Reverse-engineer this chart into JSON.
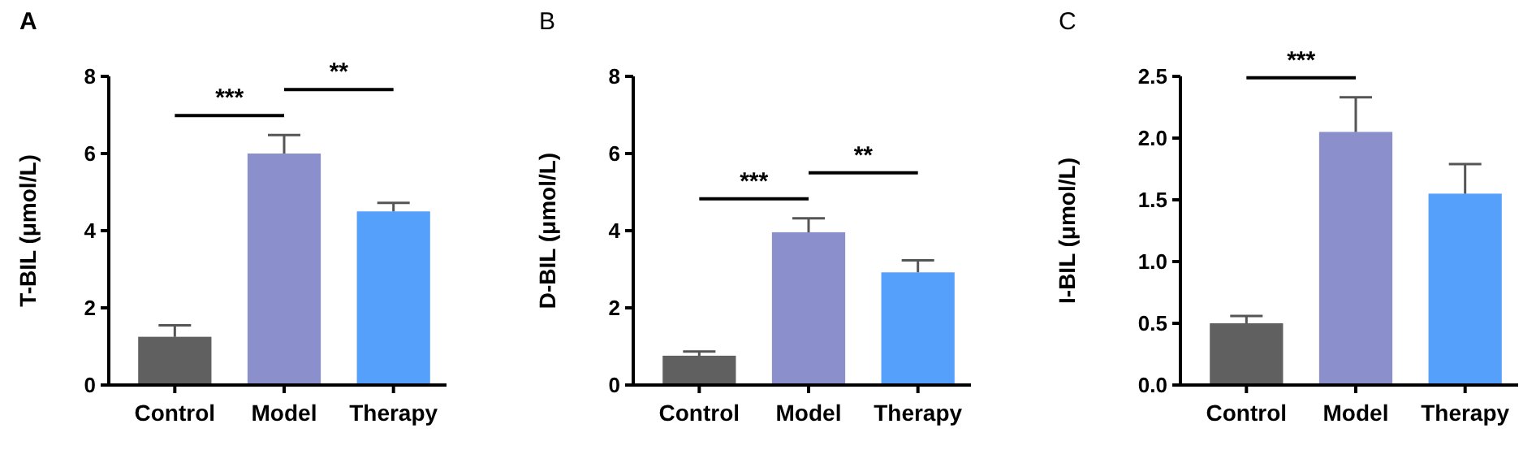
{
  "chart_data": [
    {
      "type": "bar",
      "title": "A",
      "ylabel": "T-BIL (μmol/L)",
      "categories": [
        "Control",
        "Model",
        "Therapy"
      ],
      "values": [
        1.25,
        6.0,
        4.5
      ],
      "errors": [
        [
          1.25,
          1.55
        ],
        [
          6.0,
          6.48
        ],
        [
          4.5,
          4.72
        ]
      ],
      "colors": [
        "#606060",
        "#8b90cc",
        "#55a0fb"
      ],
      "ylim": [
        0,
        8
      ],
      "yticks": [
        0,
        2,
        4,
        6,
        8
      ],
      "annotations": [
        "***",
        "**"
      ]
    },
    {
      "type": "bar",
      "title": "B",
      "ylabel": "D-BIL (μmol/L)",
      "categories": [
        "Control",
        "Model",
        "Therapy"
      ],
      "values": [
        0.76,
        3.96,
        2.92
      ],
      "errors": [
        [
          0.76,
          0.87
        ],
        [
          3.96,
          4.32
        ],
        [
          2.92,
          3.23
        ]
      ],
      "colors": [
        "#606060",
        "#8b90cc",
        "#55a0fb"
      ],
      "ylim": [
        0,
        8
      ],
      "yticks": [
        0,
        2,
        4,
        6,
        8
      ],
      "annotations": [
        "***",
        "**"
      ]
    },
    {
      "type": "bar",
      "title": "C",
      "ylabel": "I-BIL (μmol/L)",
      "categories": [
        "Control",
        "Model",
        "Therapy"
      ],
      "values": [
        0.5,
        2.05,
        1.55
      ],
      "errors": [
        [
          0.5,
          0.56
        ],
        [
          2.05,
          2.33
        ],
        [
          1.55,
          1.79
        ]
      ],
      "colors": [
        "#606060",
        "#8b90cc",
        "#55a0fb"
      ],
      "ylim": [
        0,
        2.5
      ],
      "yticks": [
        {
          "value": 0,
          "label": "0.0"
        },
        {
          "value": 0.5,
          "label": "0.5"
        },
        {
          "value": 1,
          "label": "1.0"
        },
        {
          "value": 1.5,
          "label": "1.5"
        },
        {
          "value": 2,
          "label": "2.0"
        },
        {
          "value": 2.5,
          "label": "2.5"
        }
      ],
      "annotations": [
        "***"
      ]
    }
  ]
}
